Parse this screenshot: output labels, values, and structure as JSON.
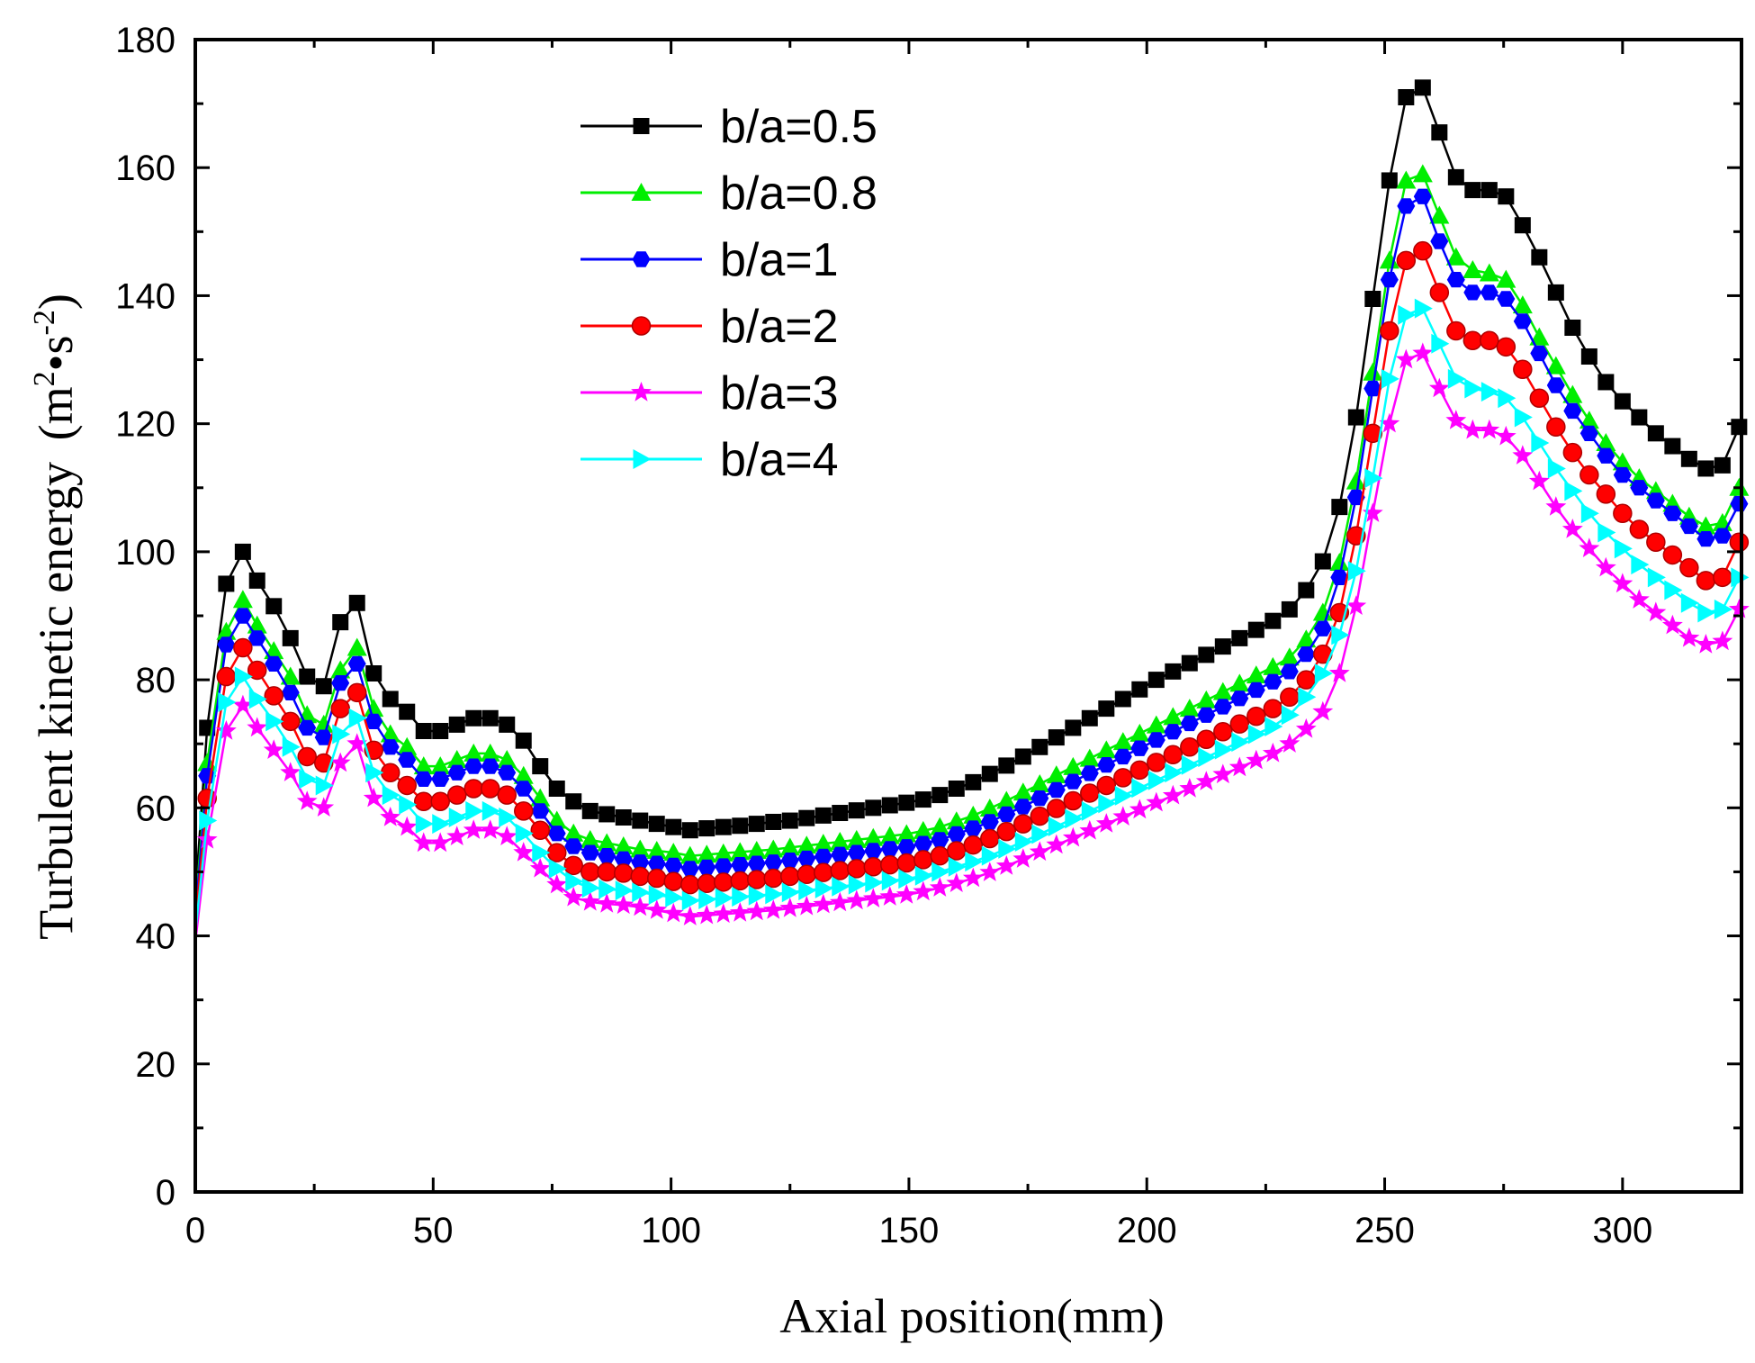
{
  "chart_data": {
    "type": "line",
    "xlabel": "Axial position(mm)",
    "ylabel": "Turbulent kinetic energy",
    "ylabel_unit": {
      "open": "(",
      "m": "m",
      "m_exp": "2",
      "dot": "•",
      "s": "s",
      "s_exp": "-2",
      "close": ")"
    },
    "xlim": [
      0,
      325
    ],
    "ylim": [
      0,
      180
    ],
    "xticks": [
      0,
      50,
      100,
      150,
      200,
      250,
      300
    ],
    "yticks": [
      0,
      20,
      40,
      60,
      80,
      100,
      120,
      140,
      160,
      180
    ],
    "legend_position": "top-left",
    "x": [
      0,
      2.5,
      6.5,
      10,
      13,
      16.5,
      20,
      23.5,
      27,
      30.5,
      34,
      37.5,
      41,
      44.5,
      48,
      51.5,
      55,
      58.5,
      62,
      65.5,
      69,
      72.5,
      76,
      79.5,
      83,
      86.5,
      90,
      93.5,
      97,
      100.5,
      104,
      107.5,
      111,
      114.5,
      118,
      121.5,
      125,
      128.5,
      132,
      135.5,
      139,
      142.5,
      146,
      149.5,
      153,
      156.5,
      160,
      163.5,
      167,
      170.5,
      174,
      177.5,
      181,
      184.5,
      188,
      191.5,
      195,
      198.5,
      202,
      205.5,
      209,
      212.5,
      216,
      219.5,
      223,
      226.5,
      230,
      233.5,
      237,
      240.5,
      244,
      247.5,
      251,
      254.5,
      258,
      261.5,
      265,
      268.5,
      272,
      275.5,
      279,
      282.5,
      286,
      289.5,
      293,
      296.5,
      300,
      303.5,
      307,
      310.5,
      314,
      317.5,
      321,
      324.5
    ],
    "series": [
      {
        "name": "b/a=0.5",
        "color": "#000000",
        "marker": "square",
        "values": [
          46,
          72.5,
          95,
          100,
          95.5,
          91.5,
          86.5,
          80.5,
          79,
          89,
          92,
          81,
          77,
          75,
          72,
          72,
          73,
          74,
          74,
          73,
          70.5,
          66.5,
          63,
          61,
          59.5,
          59,
          58.5,
          58,
          57.5,
          57,
          56.5,
          56.8,
          57,
          57.2,
          57.5,
          57.8,
          58,
          58.4,
          58.8,
          59.2,
          59.6,
          60,
          60.4,
          60.8,
          61.3,
          62,
          63,
          64,
          65.3,
          66.6,
          68,
          69.5,
          71,
          72.5,
          74,
          75.5,
          77,
          78.5,
          80,
          81.3,
          82.6,
          83.9,
          85.2,
          86.5,
          87.8,
          89.2,
          91,
          94,
          98.5,
          107,
          121,
          139.5,
          158,
          171,
          172.5,
          165.5,
          158.5,
          156.5,
          156.5,
          155.5,
          151,
          146,
          140.5,
          135,
          130.5,
          126.5,
          123.5,
          121,
          118.5,
          116.5,
          114.5,
          113,
          113.5,
          119.5
        ]
      },
      {
        "name": "b/a=0.8",
        "color": "#00ee00",
        "marker": "triangle-up",
        "values": [
          44,
          67,
          87.5,
          92.5,
          88.5,
          84.5,
          80.5,
          74.5,
          73,
          81.5,
          85,
          75.5,
          71.5,
          69.5,
          66.5,
          66.5,
          67.5,
          68.5,
          68.5,
          67.5,
          65,
          61.5,
          58,
          56,
          55,
          54.5,
          54,
          53.5,
          53.3,
          53,
          52.5,
          52.7,
          52.9,
          53.1,
          53.3,
          53.5,
          53.8,
          54.1,
          54.4,
          54.7,
          55,
          55.3,
          55.6,
          55.9,
          56.4,
          57,
          57.9,
          58.8,
          59.9,
          61.1,
          62.4,
          63.7,
          65.1,
          66.4,
          67.7,
          69,
          70.3,
          71.6,
          72.9,
          74.2,
          75.5,
          76.8,
          78.1,
          79.4,
          80.7,
          82,
          83.5,
          86.3,
          90.5,
          98.3,
          111,
          128,
          145.5,
          158,
          159,
          152.5,
          146,
          144,
          143.5,
          142.5,
          138.5,
          133.5,
          129,
          124.5,
          120.5,
          117,
          114,
          111.5,
          109.5,
          107.5,
          105.5,
          104,
          104.5,
          110
        ]
      },
      {
        "name": "b/a=1",
        "color": "#0000ff",
        "marker": "hexagon",
        "values": [
          43,
          65,
          85.5,
          90,
          86.5,
          82.5,
          78,
          72.5,
          71,
          79.5,
          82.5,
          73.5,
          69.5,
          67.5,
          64.5,
          64.5,
          65.5,
          66.5,
          66.5,
          65.5,
          63,
          59.5,
          56,
          54,
          53,
          52.5,
          52,
          51.5,
          51.3,
          51,
          50.5,
          50.7,
          50.9,
          51.1,
          51.3,
          51.5,
          51.8,
          52.1,
          52.4,
          52.7,
          53,
          53.3,
          53.6,
          53.9,
          54.4,
          55,
          55.9,
          56.8,
          57.8,
          59,
          60.2,
          61.5,
          62.8,
          64.1,
          65.4,
          66.7,
          68,
          69.3,
          70.6,
          71.9,
          73.2,
          74.5,
          75.8,
          77.1,
          78.4,
          79.7,
          81.3,
          84,
          88,
          96,
          108.5,
          125.5,
          142.5,
          154,
          155.5,
          148.5,
          142.5,
          140.5,
          140.5,
          139.5,
          136,
          131,
          126,
          122,
          118.5,
          115,
          112,
          110,
          108,
          106,
          104,
          102,
          102.5,
          107.5
        ]
      },
      {
        "name": "b/a=2",
        "color": "#ff0000",
        "marker": "circle",
        "values": [
          42,
          61.5,
          80.5,
          85,
          81.5,
          77.5,
          73.5,
          68,
          67,
          75.5,
          78,
          69,
          65.5,
          63.5,
          61,
          61,
          62,
          63,
          63,
          62,
          59.5,
          56.5,
          53,
          51,
          50,
          50,
          49.8,
          49.3,
          49,
          48.5,
          48,
          48.2,
          48.4,
          48.6,
          48.8,
          49,
          49.3,
          49.6,
          49.9,
          50.2,
          50.5,
          50.8,
          51.1,
          51.4,
          51.9,
          52.5,
          53.3,
          54.2,
          55.2,
          56.3,
          57.5,
          58.7,
          59.9,
          61.1,
          62.3,
          63.5,
          64.7,
          65.9,
          67.1,
          68.3,
          69.5,
          70.7,
          71.9,
          73.1,
          74.3,
          75.5,
          77.3,
          80,
          84,
          90.5,
          102.5,
          118.5,
          134.5,
          145.5,
          147,
          140.5,
          134.5,
          133,
          133,
          132,
          128.5,
          124,
          119.5,
          115.5,
          112,
          109,
          106,
          103.5,
          101.5,
          99.5,
          97.5,
          95.5,
          96,
          101.5
        ]
      },
      {
        "name": "b/a=3",
        "color": "#ff00ff",
        "marker": "star",
        "values": [
          39,
          55,
          72,
          76,
          72.5,
          69,
          65.5,
          61,
          60,
          67,
          70,
          61.5,
          58.5,
          57,
          54.5,
          54.5,
          55.5,
          56.5,
          56.5,
          55.5,
          53,
          50.5,
          48,
          46,
          45.3,
          45,
          44.8,
          44.5,
          44,
          43.5,
          43,
          43.2,
          43.4,
          43.6,
          43.8,
          44,
          44.3,
          44.6,
          44.9,
          45.2,
          45.5,
          45.8,
          46.1,
          46.4,
          46.9,
          47.5,
          48.2,
          49,
          49.9,
          50.9,
          52,
          53.1,
          54.2,
          55.3,
          56.4,
          57.5,
          58.6,
          59.7,
          60.8,
          61.9,
          63,
          64.1,
          65.2,
          66.3,
          67.4,
          68.5,
          70,
          72.3,
          75,
          81,
          91.5,
          106,
          120,
          130,
          131,
          125.5,
          120.5,
          119,
          119,
          118,
          115,
          111,
          107,
          103.5,
          100.5,
          97.5,
          95,
          92.5,
          90.5,
          88.5,
          86.5,
          85.5,
          86,
          91
        ]
      },
      {
        "name": "b/a=4",
        "color": "#00ffff",
        "marker": "triangle-right",
        "values": [
          40.5,
          58,
          76.5,
          80.5,
          77,
          73.5,
          69.5,
          64.5,
          63.5,
          71.5,
          74,
          65.5,
          62,
          60.5,
          57.5,
          57.5,
          58.5,
          59.5,
          59.5,
          58.5,
          56,
          53,
          50.5,
          48.5,
          47.5,
          47.3,
          47.1,
          46.8,
          46.4,
          46,
          45.5,
          45.7,
          45.9,
          46.1,
          46.3,
          46.5,
          46.8,
          47.1,
          47.4,
          47.7,
          48,
          48.3,
          48.6,
          48.9,
          49.4,
          50,
          50.8,
          51.6,
          52.5,
          53.6,
          54.7,
          55.9,
          57.1,
          58.3,
          59.5,
          60.7,
          61.9,
          63.1,
          64.3,
          65.5,
          66.7,
          67.9,
          69.1,
          70.3,
          71.5,
          72.7,
          74.5,
          77.3,
          81,
          87,
          97,
          111.5,
          127,
          137,
          138,
          132.5,
          127,
          125.5,
          125,
          124,
          121,
          117,
          113,
          109.5,
          106,
          103,
          100.5,
          98,
          96,
          94,
          92,
          90.5,
          91,
          96
        ]
      }
    ]
  }
}
